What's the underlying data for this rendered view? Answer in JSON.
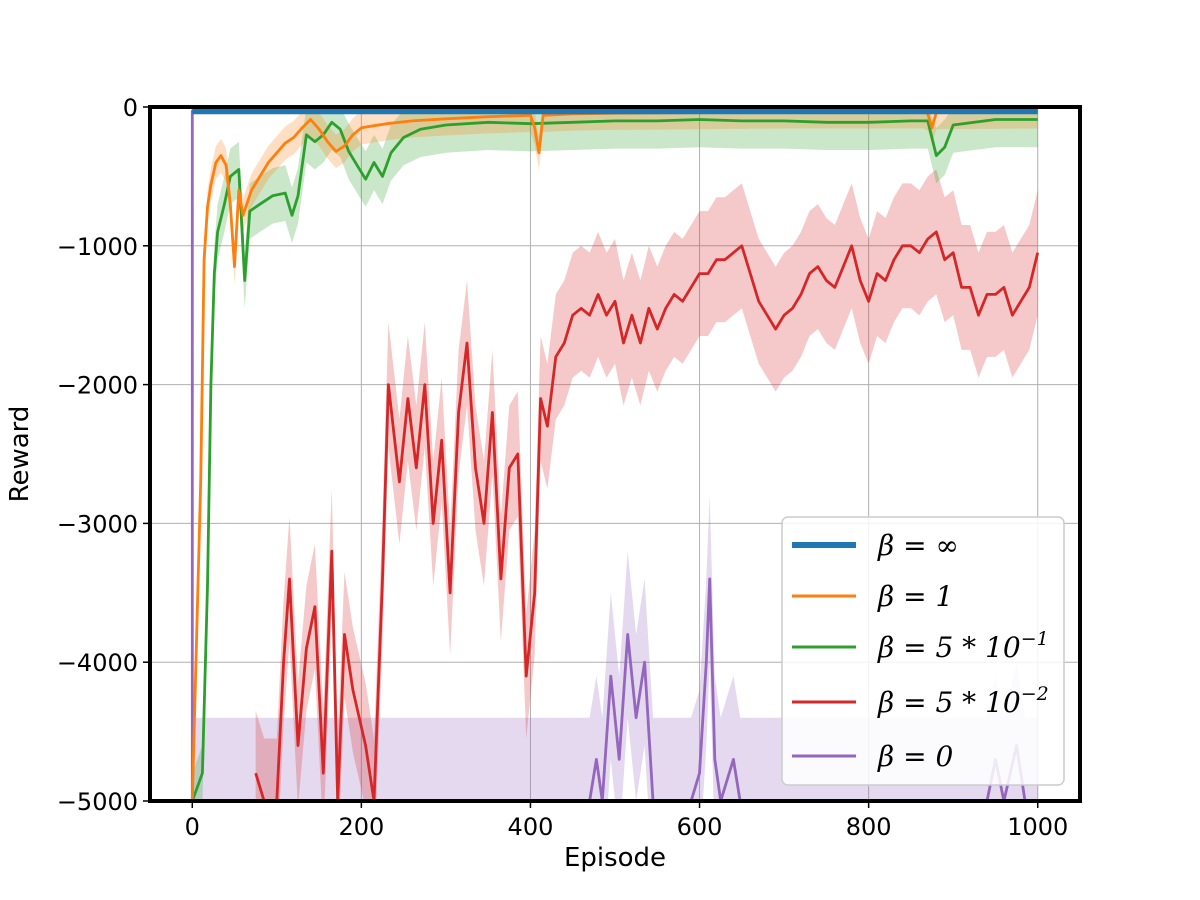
{
  "chart_data": {
    "type": "line",
    "title": "",
    "xlabel": "Episode",
    "ylabel": "Reward",
    "xlim": [
      -50,
      1050
    ],
    "ylim": [
      -5000,
      0
    ],
    "xticks": [
      0,
      200,
      400,
      600,
      800,
      1000
    ],
    "xtick_labels": [
      "0",
      "200",
      "400",
      "600",
      "800",
      "1000"
    ],
    "yticks": [
      0,
      -1000,
      -2000,
      -3000,
      -4000,
      -5000
    ],
    "ytick_labels": [
      "0",
      "−1000",
      "−2000",
      "−3000",
      "−4000",
      "−5000"
    ],
    "grid": true,
    "legend_position": "lower-right",
    "series": [
      {
        "name": "β = ∞",
        "color": "#1f77b4",
        "points": [
          [
            0,
            -30
          ],
          [
            1000,
            -30
          ]
        ]
      },
      {
        "name": "β = 1",
        "color": "#ff7f0e",
        "band": 120,
        "points": [
          [
            0,
            -5000
          ],
          [
            10,
            -2700
          ],
          [
            14,
            -1100
          ],
          [
            18,
            -720
          ],
          [
            22,
            -560
          ],
          [
            28,
            -400
          ],
          [
            34,
            -350
          ],
          [
            40,
            -420
          ],
          [
            45,
            -700
          ],
          [
            50,
            -1150
          ],
          [
            55,
            -600
          ],
          [
            60,
            -780
          ],
          [
            70,
            -600
          ],
          [
            80,
            -500
          ],
          [
            90,
            -400
          ],
          [
            100,
            -330
          ],
          [
            110,
            -260
          ],
          [
            120,
            -220
          ],
          [
            130,
            -150
          ],
          [
            140,
            -90
          ],
          [
            150,
            -160
          ],
          [
            160,
            -250
          ],
          [
            170,
            -320
          ],
          [
            180,
            -280
          ],
          [
            190,
            -200
          ],
          [
            200,
            -150
          ],
          [
            230,
            -120
          ],
          [
            260,
            -100
          ],
          [
            300,
            -85
          ],
          [
            350,
            -70
          ],
          [
            400,
            -60
          ],
          [
            405,
            -150
          ],
          [
            410,
            -330
          ],
          [
            415,
            -60
          ],
          [
            450,
            -50
          ],
          [
            500,
            -45
          ],
          [
            600,
            -40
          ],
          [
            700,
            -35
          ],
          [
            800,
            -35
          ],
          [
            865,
            -35
          ],
          [
            870,
            -50
          ],
          [
            875,
            -150
          ],
          [
            880,
            -40
          ],
          [
            1000,
            -35
          ]
        ]
      },
      {
        "name": "β = 5 * 10⁻¹",
        "color": "#2ca02c",
        "band": 200,
        "points": [
          [
            0,
            -5000
          ],
          [
            12,
            -4800
          ],
          [
            18,
            -3450
          ],
          [
            22,
            -2000
          ],
          [
            26,
            -1200
          ],
          [
            30,
            -900
          ],
          [
            38,
            -700
          ],
          [
            45,
            -500
          ],
          [
            55,
            -450
          ],
          [
            62,
            -1250
          ],
          [
            68,
            -750
          ],
          [
            80,
            -700
          ],
          [
            95,
            -640
          ],
          [
            110,
            -620
          ],
          [
            118,
            -780
          ],
          [
            125,
            -640
          ],
          [
            135,
            -200
          ],
          [
            145,
            -250
          ],
          [
            155,
            -200
          ],
          [
            165,
            -110
          ],
          [
            175,
            -160
          ],
          [
            185,
            -320
          ],
          [
            195,
            -420
          ],
          [
            205,
            -520
          ],
          [
            215,
            -400
          ],
          [
            225,
            -500
          ],
          [
            235,
            -330
          ],
          [
            250,
            -220
          ],
          [
            270,
            -160
          ],
          [
            300,
            -130
          ],
          [
            350,
            -110
          ],
          [
            400,
            -120
          ],
          [
            450,
            -110
          ],
          [
            500,
            -100
          ],
          [
            550,
            -100
          ],
          [
            600,
            -90
          ],
          [
            650,
            -100
          ],
          [
            700,
            -100
          ],
          [
            750,
            -110
          ],
          [
            800,
            -110
          ],
          [
            850,
            -100
          ],
          [
            870,
            -100
          ],
          [
            880,
            -350
          ],
          [
            890,
            -290
          ],
          [
            900,
            -130
          ],
          [
            950,
            -90
          ],
          [
            1000,
            -90
          ]
        ]
      },
      {
        "name": "β = 5 * 10⁻²",
        "color": "#d62728",
        "band": 450,
        "points": [
          [
            75,
            -4800
          ],
          [
            85,
            -5000
          ],
          [
            100,
            -5000
          ],
          [
            108,
            -4000
          ],
          [
            115,
            -3400
          ],
          [
            125,
            -4600
          ],
          [
            135,
            -3900
          ],
          [
            145,
            -3600
          ],
          [
            155,
            -4800
          ],
          [
            165,
            -3200
          ],
          [
            172,
            -5000
          ],
          [
            180,
            -3800
          ],
          [
            190,
            -4200
          ],
          [
            205,
            -4600
          ],
          [
            215,
            -5000
          ],
          [
            225,
            -3400
          ],
          [
            232,
            -2000
          ],
          [
            245,
            -2700
          ],
          [
            255,
            -2100
          ],
          [
            265,
            -2600
          ],
          [
            275,
            -2000
          ],
          [
            285,
            -3000
          ],
          [
            295,
            -2400
          ],
          [
            305,
            -3500
          ],
          [
            315,
            -2200
          ],
          [
            325,
            -1700
          ],
          [
            335,
            -2600
          ],
          [
            345,
            -3000
          ],
          [
            355,
            -2200
          ],
          [
            365,
            -3400
          ],
          [
            375,
            -2600
          ],
          [
            385,
            -2500
          ],
          [
            395,
            -4100
          ],
          [
            405,
            -3500
          ],
          [
            412,
            -2100
          ],
          [
            420,
            -2300
          ],
          [
            430,
            -1800
          ],
          [
            440,
            -1700
          ],
          [
            450,
            -1500
          ],
          [
            460,
            -1450
          ],
          [
            470,
            -1500
          ],
          [
            480,
            -1350
          ],
          [
            490,
            -1500
          ],
          [
            500,
            -1400
          ],
          [
            510,
            -1700
          ],
          [
            520,
            -1500
          ],
          [
            530,
            -1700
          ],
          [
            540,
            -1450
          ],
          [
            550,
            -1600
          ],
          [
            560,
            -1450
          ],
          [
            570,
            -1350
          ],
          [
            580,
            -1400
          ],
          [
            590,
            -1300
          ],
          [
            600,
            -1200
          ],
          [
            610,
            -1200
          ],
          [
            620,
            -1100
          ],
          [
            630,
            -1100
          ],
          [
            640,
            -1050
          ],
          [
            650,
            -1000
          ],
          [
            660,
            -1200
          ],
          [
            670,
            -1400
          ],
          [
            680,
            -1500
          ],
          [
            690,
            -1600
          ],
          [
            700,
            -1500
          ],
          [
            710,
            -1450
          ],
          [
            720,
            -1350
          ],
          [
            730,
            -1200
          ],
          [
            740,
            -1150
          ],
          [
            750,
            -1250
          ],
          [
            760,
            -1300
          ],
          [
            770,
            -1150
          ],
          [
            780,
            -1000
          ],
          [
            790,
            -1250
          ],
          [
            800,
            -1400
          ],
          [
            810,
            -1200
          ],
          [
            820,
            -1250
          ],
          [
            830,
            -1100
          ],
          [
            840,
            -1000
          ],
          [
            850,
            -1000
          ],
          [
            860,
            -1050
          ],
          [
            870,
            -950
          ],
          [
            880,
            -900
          ],
          [
            890,
            -1100
          ],
          [
            900,
            -1050
          ],
          [
            910,
            -1300
          ],
          [
            920,
            -1300
          ],
          [
            930,
            -1500
          ],
          [
            940,
            -1350
          ],
          [
            950,
            -1350
          ],
          [
            960,
            -1300
          ],
          [
            970,
            -1500
          ],
          [
            980,
            -1400
          ],
          [
            990,
            -1300
          ],
          [
            1000,
            -1050
          ]
        ]
      },
      {
        "name": "β = 0",
        "color": "#9467bd",
        "band": 600,
        "points": [
          [
            0,
            -5000
          ],
          [
            0,
            -30
          ],
          [
            0,
            -5000
          ],
          [
            470,
            -5000
          ],
          [
            478,
            -4700
          ],
          [
            485,
            -5000
          ],
          [
            495,
            -4100
          ],
          [
            505,
            -4700
          ],
          [
            515,
            -3800
          ],
          [
            525,
            -4400
          ],
          [
            535,
            -4000
          ],
          [
            545,
            -5000
          ],
          [
            590,
            -5000
          ],
          [
            600,
            -4800
          ],
          [
            608,
            -4000
          ],
          [
            612,
            -3400
          ],
          [
            618,
            -4700
          ],
          [
            625,
            -5000
          ],
          [
            640,
            -4700
          ],
          [
            648,
            -5000
          ],
          [
            660,
            -5000
          ],
          [
            940,
            -5000
          ],
          [
            950,
            -4700
          ],
          [
            960,
            -5000
          ],
          [
            975,
            -4600
          ],
          [
            985,
            -5000
          ],
          [
            1000,
            -5000
          ]
        ]
      }
    ]
  },
  "legend": {
    "items": [
      {
        "label_main": "β = ∞",
        "label_sup": ""
      },
      {
        "label_main": "β = 1",
        "label_sup": ""
      },
      {
        "label_main": "β = 5 * 10",
        "label_sup": "−1"
      },
      {
        "label_main": "β = 5 * 10",
        "label_sup": "−2"
      },
      {
        "label_main": "β = 0",
        "label_sup": ""
      }
    ]
  }
}
